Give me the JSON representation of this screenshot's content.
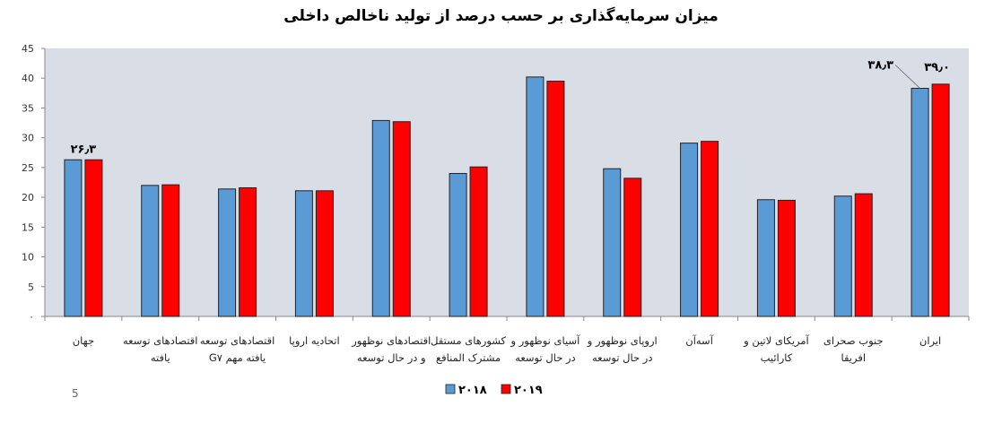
{
  "chart_data": {
    "type": "bar",
    "title": "میزان سرمایه‌گذاری بر حسب درصد از تولید ناخالص داخلی",
    "xlabel": "",
    "ylabel": "",
    "ylim": [
      0,
      45
    ],
    "y_ticks": [
      "۰",
      "5",
      "10",
      "15",
      "20",
      "25",
      "30",
      "35",
      "40",
      "45"
    ],
    "y_tick_values": [
      0,
      5,
      10,
      15,
      20,
      25,
      30,
      35,
      40,
      45
    ],
    "grid": false,
    "legend_position": "bottom-center",
    "categories": [
      [
        "جهان"
      ],
      [
        "اقتصادهای توسعه",
        "یافته"
      ],
      [
        "اقتصادهای توسعه",
        "یافته مهم G۷"
      ],
      [
        "اتحادیه اروپا"
      ],
      [
        "اقتصادهای نوظهور",
        "و در حال توسعه"
      ],
      [
        "کشورهای مستقل",
        "مشترک المنافع"
      ],
      [
        "آسیای نوظهور و",
        "در حال توسعه"
      ],
      [
        "اروپای نوظهور و",
        "در حال توسعه"
      ],
      [
        "آسه‌آن"
      ],
      [
        "آمریکای لاتین و",
        "کارائیب"
      ],
      [
        "جنوب صحرای",
        "افریقا"
      ],
      [
        "ایران"
      ]
    ],
    "series": [
      {
        "name": "۲۰۱۸",
        "color": "#5b9bd5",
        "values": [
          26.3,
          22.0,
          21.4,
          21.1,
          32.9,
          24.0,
          40.2,
          24.8,
          29.1,
          19.6,
          20.2,
          38.3
        ]
      },
      {
        "name": "۲۰۱۹",
        "color": "#ff0000",
        "values": [
          26.3,
          22.1,
          21.6,
          21.1,
          32.7,
          25.1,
          39.5,
          23.2,
          29.4,
          19.5,
          20.6,
          39.0
        ]
      }
    ],
    "data_labels": [
      {
        "category_index": 0,
        "text": "۲۶٫۳"
      },
      {
        "category_index": 11,
        "series_index": 0,
        "text": "۳۸٫۳"
      },
      {
        "category_index": 11,
        "series_index": 1,
        "text": "۳۹٫۰"
      }
    ],
    "plot_background": "#d9dde6"
  },
  "page_number": "5"
}
